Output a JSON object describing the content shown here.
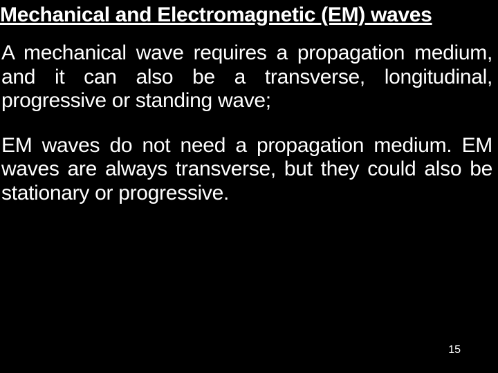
{
  "slide": {
    "background_color": "#000000",
    "text_color": "#ffffff",
    "title": "Mechanical and Electromagnetic (EM) waves",
    "title_fontsize": 30,
    "title_fontweight": "bold",
    "title_underline": true,
    "body_fontsize": 30,
    "body_align": "justify",
    "paragraphs": [
      "A mechanical wave requires a propagation medium, and it can also be a transverse, longitudinal, progressive or standing wave;",
      "EM waves do not need a propagation medium. EM waves are always transverse, but they could also be stationary or progressive."
    ],
    "page_number": "15",
    "page_number_fontsize": 16
  }
}
